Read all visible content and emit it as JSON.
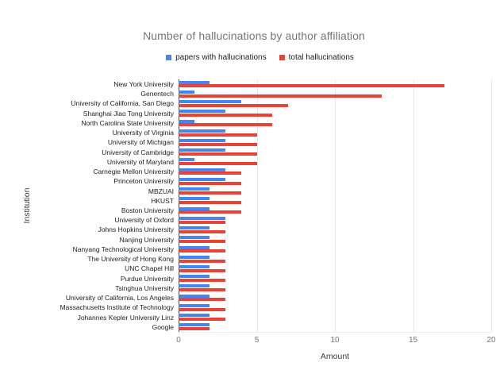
{
  "page": {
    "background_color": "#ffffff"
  },
  "chart_data": {
    "type": "bar",
    "orientation": "horizontal",
    "title": "Number of hallucinations by author affiliation",
    "xlabel": "Amount",
    "ylabel": "Institution",
    "xlim": [
      0,
      20
    ],
    "xticks": [
      0,
      5,
      10,
      15,
      20
    ],
    "grid": "vertical",
    "legend_position": "top",
    "axis_color": "#4a4a4a",
    "gridline_color": "#e6e6e6",
    "categories": [
      "New York University",
      "Genentech",
      "University of California, San Diego",
      "Shanghai Jiao Tong University",
      "North Carolina State University",
      "University of Virginia",
      "University of Michigan",
      "University of Cambridge",
      "University of Maryland",
      "Carnegie Mellon University",
      "Princeton University",
      "MBZUAI",
      "HKUST",
      "Boston University",
      "University of Oxford",
      "Johns Hopkins University",
      "Nanjing University",
      "Nanyang Technological University",
      "The University of Hong Kong",
      "UNC Chapel Hill",
      "Purdue University",
      "Tsinghua University",
      "University of California, Los Angeles",
      "Massachusetts Institute of Technology",
      "Johannes Kepler University Linz",
      "Google"
    ],
    "series": [
      {
        "name": "papers with hallucinations",
        "color": "#4285F4",
        "values": [
          2,
          1,
          4,
          3,
          1,
          3,
          3,
          3,
          1,
          3,
          3,
          2,
          2,
          2,
          3,
          2,
          2,
          2,
          2,
          2,
          2,
          2,
          2,
          2,
          2,
          2
        ]
      },
      {
        "name": "total hallucinations",
        "color": "#EA4335",
        "values": [
          17,
          13,
          7,
          6,
          6,
          5,
          5,
          5,
          5,
          4,
          4,
          4,
          4,
          4,
          3,
          3,
          3,
          3,
          3,
          3,
          3,
          3,
          3,
          3,
          3,
          2
        ]
      }
    ]
  }
}
